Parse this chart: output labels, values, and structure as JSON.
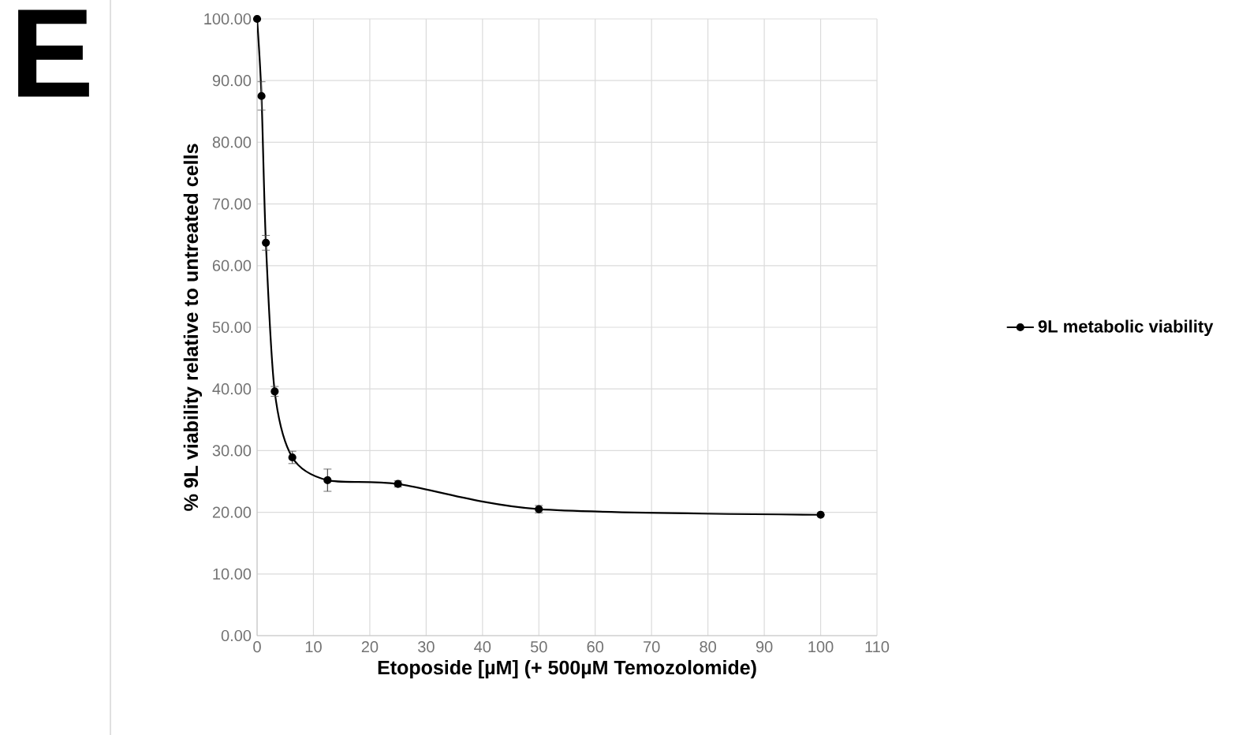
{
  "chart_data": {
    "type": "line",
    "xlabel": "Etoposide [µM] (+ 500µM Temozolomide)",
    "ylabel": "% 9L viability relative to untreated cells",
    "annotations": [
      "E"
    ],
    "x": [
      0,
      0.78,
      1.56,
      3.125,
      6.25,
      12.5,
      25,
      50,
      100
    ],
    "series": [
      {
        "name": "9L metabolic viability",
        "color": "#000000",
        "values": [
          100,
          87.5,
          63.7,
          39.6,
          28.9,
          25.2,
          24.6,
          20.5,
          19.6
        ],
        "errors": [
          null,
          2.3,
          1.2,
          0.8,
          1.0,
          1.8,
          0.5,
          0.6,
          null
        ]
      }
    ],
    "xlim": [
      0,
      110
    ],
    "xticks": [
      0,
      10,
      20,
      30,
      40,
      50,
      60,
      70,
      80,
      90,
      100,
      110
    ],
    "ylim": [
      0,
      100
    ],
    "yticks": [
      {
        "value": 0,
        "label": "0.00"
      },
      {
        "value": 10,
        "label": "10.00"
      },
      {
        "value": 20,
        "label": "20.00"
      },
      {
        "value": 30,
        "label": "30.00"
      },
      {
        "value": 40,
        "label": "40.00"
      },
      {
        "value": 50,
        "label": "50.00"
      },
      {
        "value": 60,
        "label": "60.00"
      },
      {
        "value": 70,
        "label": "70.00"
      },
      {
        "value": 80,
        "label": "80.00"
      },
      {
        "value": 90,
        "label": "90.00"
      },
      {
        "value": 100,
        "label": "100.00"
      }
    ],
    "grid": true,
    "legend": "right",
    "marker": "circle",
    "line_style": "solid"
  }
}
